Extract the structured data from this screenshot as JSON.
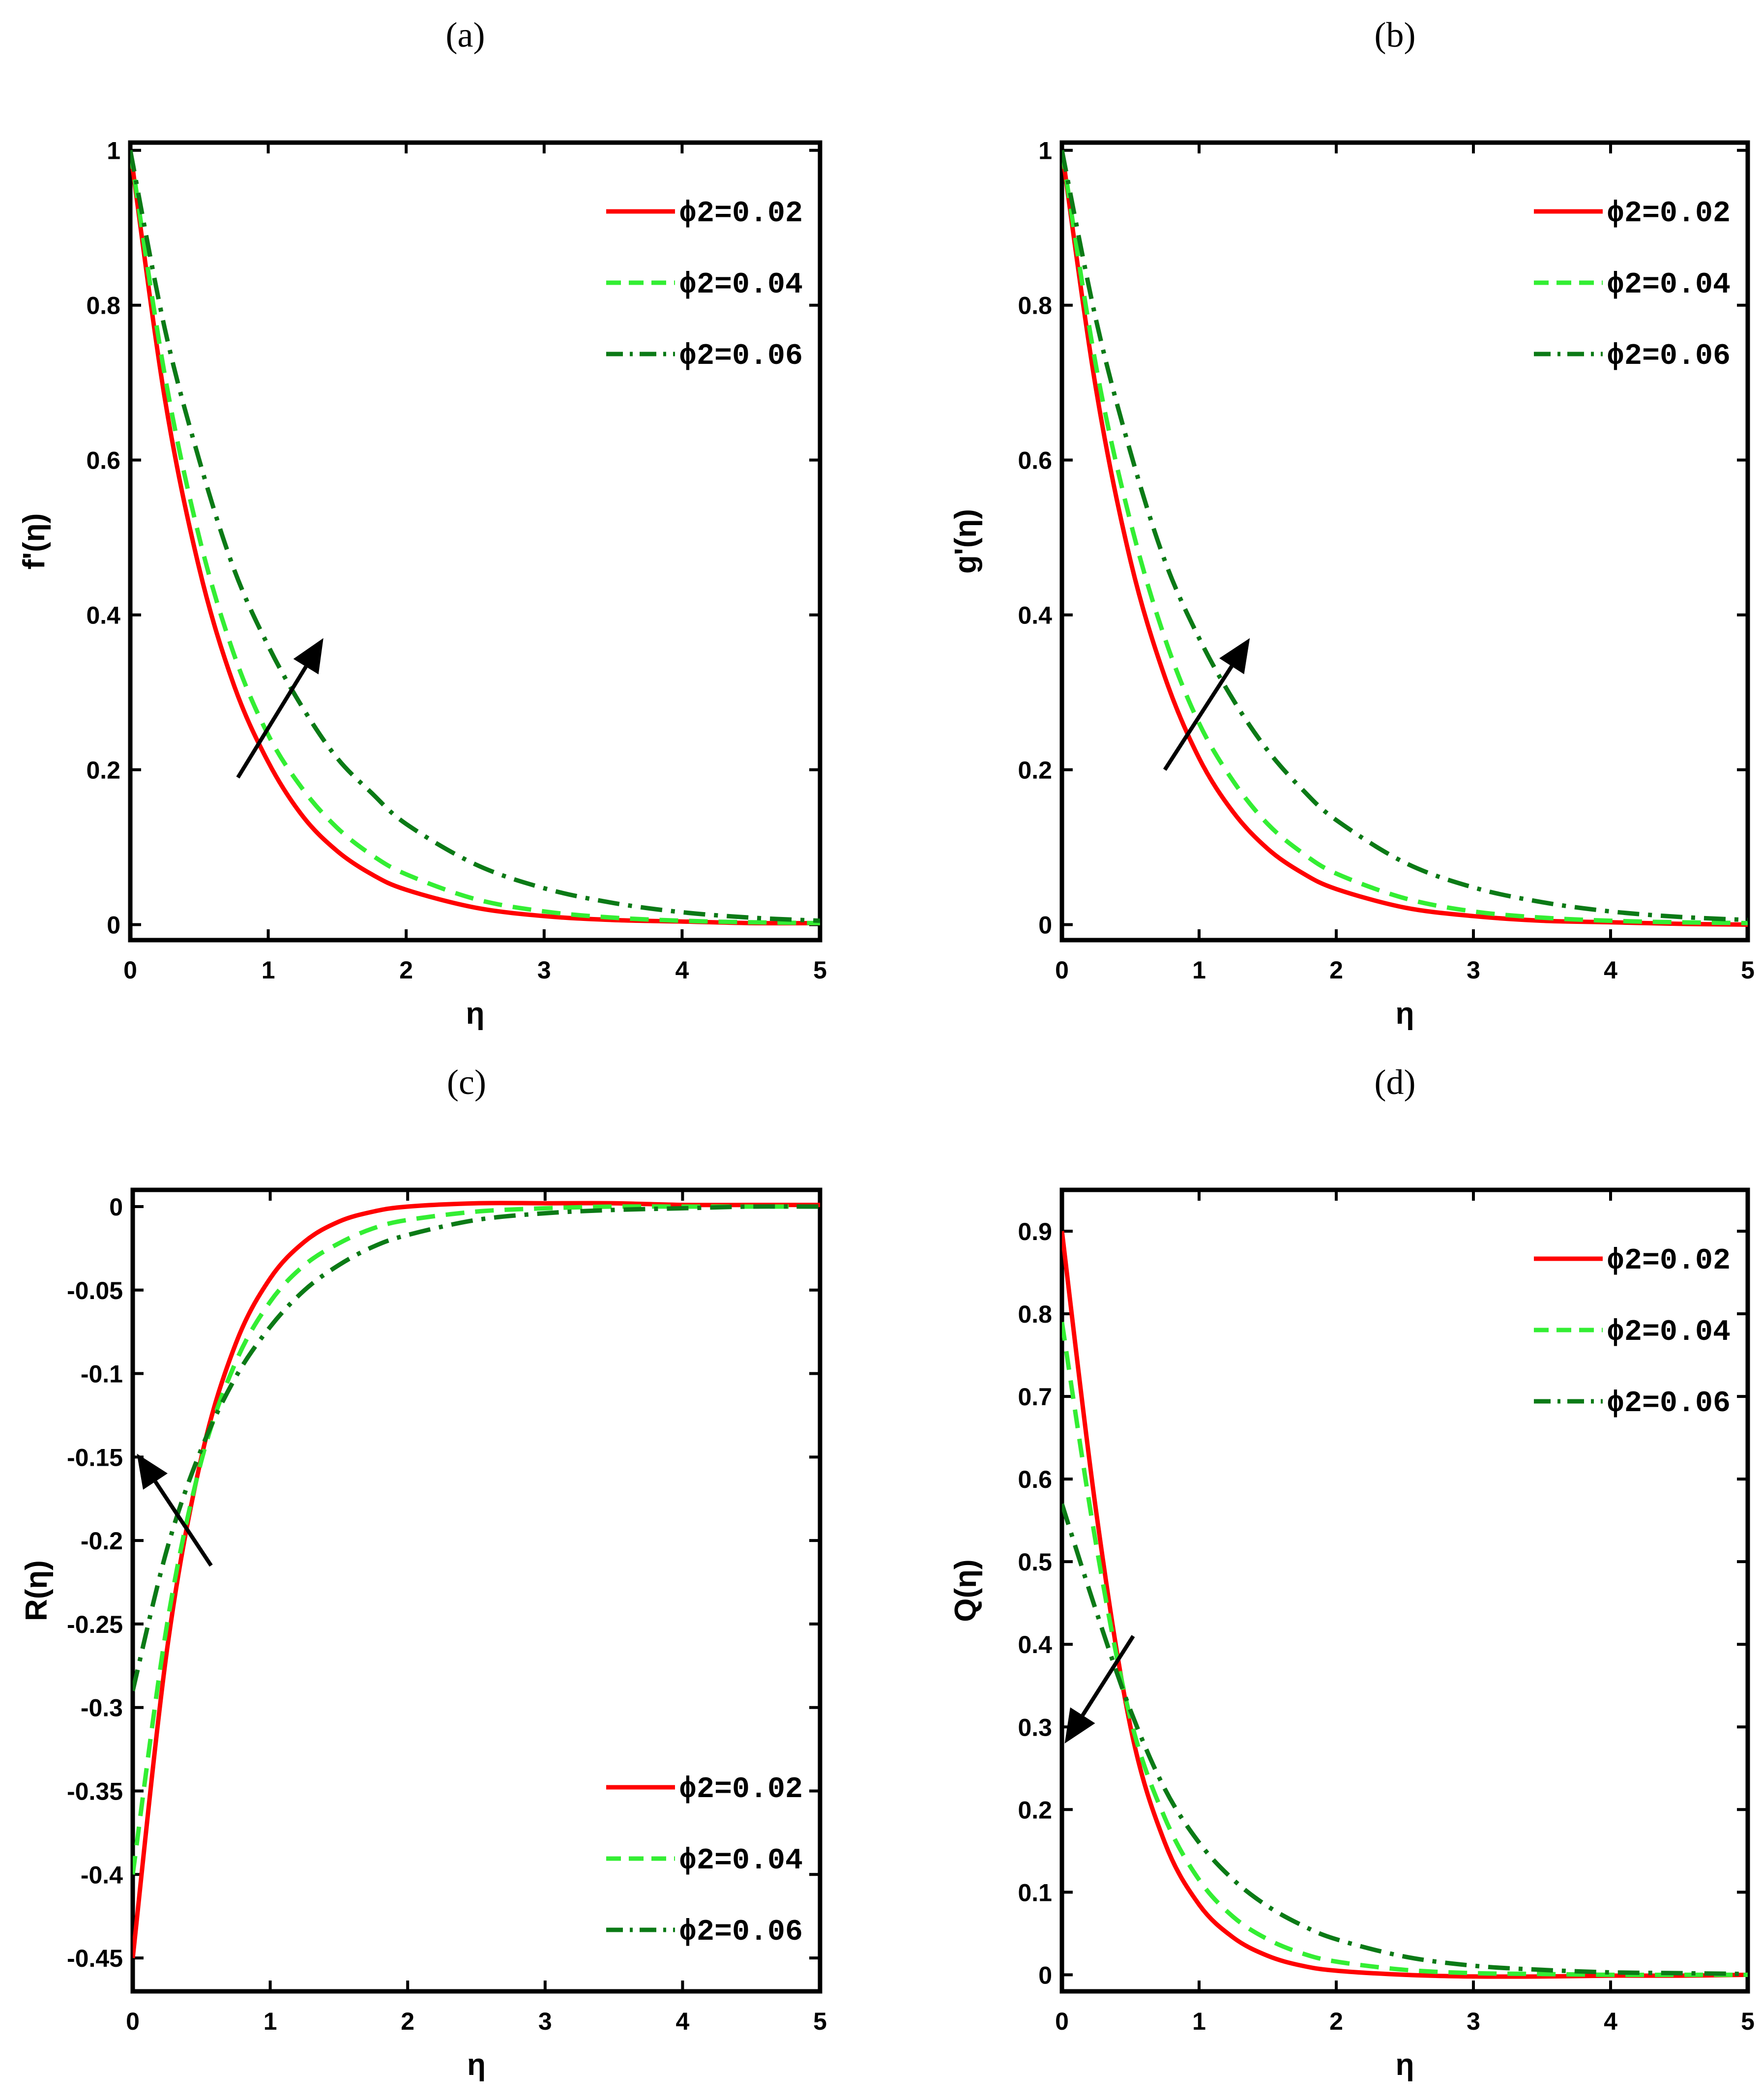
{
  "chart_data": [
    {
      "panel": "(a)",
      "type": "line",
      "xlabel": "η",
      "ylabel": "f'(η)",
      "xlim": [
        0,
        5
      ],
      "ylim": [
        -0.02,
        1.01
      ],
      "xticks": [
        0,
        1,
        2,
        3,
        4,
        5
      ],
      "yticks": [
        0,
        0.2,
        0.4,
        0.6,
        0.8,
        1
      ],
      "ytick_labels": [
        "0",
        "0.2",
        "0.4",
        "0.6",
        "0.8",
        "1"
      ],
      "legend_position": "top-right",
      "arrow": {
        "from": [
          0.78,
          0.19
        ],
        "to": [
          1.4,
          0.37
        ]
      },
      "x": [
        0,
        0.25,
        0.5,
        0.75,
        1,
        1.25,
        1.5,
        1.75,
        2,
        2.5,
        3,
        3.5,
        4,
        4.5,
        5
      ],
      "series": [
        {
          "name": "ϕ2=0.02",
          "color": "#ff0000",
          "dash": "solid",
          "values": [
            1,
            0.68,
            0.46,
            0.31,
            0.21,
            0.14,
            0.095,
            0.065,
            0.045,
            0.022,
            0.011,
            0.006,
            0.004,
            0.002,
            0.002
          ]
        },
        {
          "name": "ϕ2=0.04",
          "color": "#33ee33",
          "dash": "dash",
          "values": [
            1,
            0.71,
            0.5,
            0.35,
            0.245,
            0.175,
            0.125,
            0.09,
            0.065,
            0.033,
            0.017,
            0.009,
            0.005,
            0.003,
            0.002
          ]
        },
        {
          "name": "ϕ2=0.06",
          "color": "#0b7a16",
          "dash": "dashdot",
          "values": [
            1,
            0.77,
            0.6,
            0.46,
            0.36,
            0.28,
            0.215,
            0.17,
            0.13,
            0.078,
            0.047,
            0.028,
            0.016,
            0.009,
            0.005
          ]
        }
      ]
    },
    {
      "panel": "(b)",
      "type": "line",
      "xlabel": "η",
      "ylabel": "g'(η)",
      "xlim": [
        0,
        5
      ],
      "ylim": [
        -0.02,
        1.01
      ],
      "xticks": [
        0,
        1,
        2,
        3,
        4,
        5
      ],
      "yticks": [
        0,
        0.2,
        0.4,
        0.6,
        0.8,
        1
      ],
      "ytick_labels": [
        "0",
        "0.2",
        "0.4",
        "0.6",
        "0.8",
        "1"
      ],
      "legend_position": "top-right",
      "arrow": {
        "from": [
          0.75,
          0.2
        ],
        "to": [
          1.37,
          0.37
        ]
      },
      "x": [
        0,
        0.25,
        0.5,
        0.75,
        1,
        1.25,
        1.5,
        1.75,
        2,
        2.5,
        3,
        3.5,
        4,
        4.5,
        5
      ],
      "series": [
        {
          "name": "ϕ2=0.02",
          "color": "#ff0000",
          "dash": "solid",
          "values": [
            1,
            0.69,
            0.47,
            0.32,
            0.215,
            0.145,
            0.098,
            0.067,
            0.046,
            0.022,
            0.011,
            0.005,
            0.003,
            0.001,
            0.0
          ]
        },
        {
          "name": "ϕ2=0.04",
          "color": "#33ee33",
          "dash": "dash",
          "values": [
            1,
            0.72,
            0.52,
            0.37,
            0.26,
            0.185,
            0.13,
            0.093,
            0.066,
            0.034,
            0.017,
            0.009,
            0.005,
            0.003,
            0.002
          ]
        },
        {
          "name": "ϕ2=0.06",
          "color": "#0b7a16",
          "dash": "dashdot",
          "values": [
            1,
            0.78,
            0.61,
            0.47,
            0.37,
            0.29,
            0.225,
            0.175,
            0.135,
            0.08,
            0.048,
            0.029,
            0.017,
            0.01,
            0.006
          ]
        }
      ]
    },
    {
      "panel": "(c)",
      "type": "line",
      "xlabel": "η",
      "ylabel": "R(η)",
      "xlim": [
        0,
        5
      ],
      "ylim": [
        -0.47,
        0.01
      ],
      "xticks": [
        0,
        1,
        2,
        3,
        4,
        5
      ],
      "yticks": [
        0,
        -0.05,
        -0.1,
        -0.15,
        -0.2,
        -0.25,
        -0.3,
        -0.35,
        -0.4,
        -0.45
      ],
      "ytick_labels": [
        "0",
        "-0.05",
        "-0.1",
        "-0.15",
        "-0.2",
        "-0.25",
        "-0.3",
        "-0.35",
        "-0.4",
        "-0.45"
      ],
      "legend_position": "bottom-right",
      "arrow": {
        "from": [
          0.57,
          -0.215
        ],
        "to": [
          0.03,
          -0.148
        ]
      },
      "x": [
        0,
        0.25,
        0.5,
        0.75,
        1,
        1.25,
        1.5,
        1.75,
        2,
        2.5,
        3,
        3.5,
        4,
        4.5,
        5
      ],
      "series": [
        {
          "name": "ϕ2=0.02",
          "color": "#ff0000",
          "dash": "solid",
          "values": [
            -0.45,
            -0.265,
            -0.15,
            -0.082,
            -0.043,
            -0.021,
            -0.009,
            -0.003,
            0.0,
            0.002,
            0.002,
            0.002,
            0.001,
            0.001,
            0.001
          ]
        },
        {
          "name": "ϕ2=0.04",
          "color": "#33ee33",
          "dash": "dash",
          "values": [
            -0.4,
            -0.25,
            -0.152,
            -0.093,
            -0.057,
            -0.035,
            -0.022,
            -0.013,
            -0.008,
            -0.003,
            -0.001,
            0.0,
            0.0,
            0.0,
            0.0
          ]
        },
        {
          "name": "ϕ2=0.06",
          "color": "#0b7a16",
          "dash": "dashdot",
          "values": [
            -0.29,
            -0.205,
            -0.145,
            -0.102,
            -0.072,
            -0.05,
            -0.035,
            -0.024,
            -0.017,
            -0.008,
            -0.004,
            -0.002,
            -0.001,
            0.0,
            0.0
          ]
        }
      ]
    },
    {
      "panel": "(d)",
      "type": "line",
      "xlabel": "η",
      "ylabel": "Q(η)",
      "xlim": [
        0,
        5
      ],
      "ylim": [
        -0.02,
        0.95
      ],
      "xticks": [
        0,
        1,
        2,
        3,
        4,
        5
      ],
      "yticks": [
        0,
        0.1,
        0.2,
        0.3,
        0.4,
        0.5,
        0.6,
        0.7,
        0.8,
        0.9
      ],
      "ytick_labels": [
        "0",
        "0.1",
        "0.2",
        "0.3",
        "0.4",
        "0.5",
        "0.6",
        "0.7",
        "0.8",
        "0.9"
      ],
      "legend_position": "top-right",
      "arrow": {
        "from": [
          0.52,
          0.41
        ],
        "to": [
          0.02,
          0.28
        ]
      },
      "x": [
        0,
        0.25,
        0.5,
        0.75,
        1,
        1.25,
        1.5,
        1.75,
        2,
        2.5,
        3,
        3.5,
        4,
        4.5,
        5
      ],
      "series": [
        {
          "name": "ϕ2=0.02",
          "color": "#ff0000",
          "dash": "solid",
          "values": [
            0.9,
            0.56,
            0.3,
            0.16,
            0.085,
            0.045,
            0.023,
            0.011,
            0.005,
            0.0,
            -0.002,
            -0.002,
            -0.001,
            -0.001,
            0.0
          ]
        },
        {
          "name": "ϕ2=0.04",
          "color": "#33ee33",
          "dash": "dash",
          "values": [
            0.79,
            0.52,
            0.31,
            0.19,
            0.115,
            0.07,
            0.043,
            0.026,
            0.016,
            0.006,
            0.002,
            0.001,
            0.0,
            0.0,
            0.0
          ]
        },
        {
          "name": "ϕ2=0.06",
          "color": "#0b7a16",
          "dash": "dashdot",
          "values": [
            0.57,
            0.44,
            0.32,
            0.225,
            0.16,
            0.115,
            0.083,
            0.06,
            0.043,
            0.022,
            0.011,
            0.006,
            0.003,
            0.002,
            0.001
          ]
        }
      ]
    }
  ]
}
